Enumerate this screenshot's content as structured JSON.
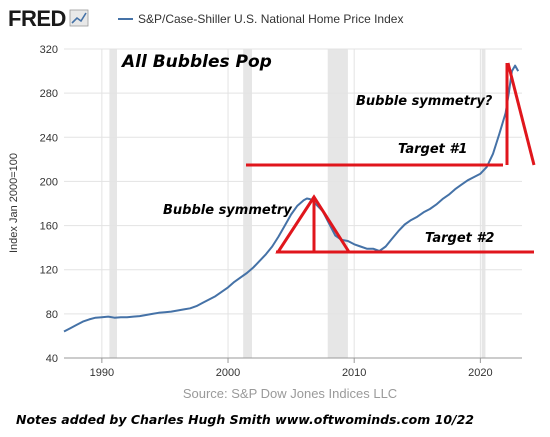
{
  "header": {
    "logo_text": "FRED",
    "legend_label": "S&P/Case-Shiller U.S. National Home Price Index"
  },
  "footer": {
    "source": "Source: S&P Dow Jones Indices LLC",
    "notes": "Notes added by Charles Hugh Smith  www.oftwominds.com   10/22"
  },
  "colors": {
    "series": "#4572a7",
    "annotation": "#e0161c",
    "recession": "#e6e6e6",
    "grid": "#e3e3e3"
  },
  "icons": {
    "logo_chart": "small-line-chart-icon"
  },
  "annotations": {
    "all_bubbles_pop": "All Bubbles Pop",
    "bubble_symmetry": "Bubble symmetry",
    "bubble_symmetry_q": "Bubble symmetry?",
    "target1": "Target #1",
    "target2": "Target #2"
  },
  "chart_data": {
    "type": "line",
    "title": "",
    "xlabel": "",
    "ylabel": "Index Jan 2000=100",
    "xlim": [
      1987.0,
      2023.3
    ],
    "ylim": [
      40,
      320
    ],
    "x_ticks": [
      1990,
      2000,
      2010,
      2020
    ],
    "y_ticks": [
      40,
      80,
      120,
      160,
      200,
      240,
      280,
      320
    ],
    "grid": true,
    "recessions": [
      [
        1990.6,
        1991.2
      ],
      [
        2001.2,
        2001.9
      ],
      [
        2007.9,
        2009.5
      ],
      [
        2020.1,
        2020.4
      ]
    ],
    "series": [
      {
        "name": "S&P/Case-Shiller U.S. National Home Price Index",
        "x": [
          1987.0,
          1987.5,
          1988.0,
          1988.5,
          1989.0,
          1989.5,
          1990.0,
          1990.5,
          1991.0,
          1991.5,
          1992.0,
          1992.5,
          1993.0,
          1993.5,
          1994.0,
          1994.5,
          1995.0,
          1995.5,
          1996.0,
          1996.5,
          1997.0,
          1997.5,
          1998.0,
          1998.5,
          1999.0,
          1999.5,
          2000.0,
          2000.5,
          2001.0,
          2001.5,
          2002.0,
          2002.5,
          2003.0,
          2003.5,
          2004.0,
          2004.5,
          2005.0,
          2005.5,
          2006.0,
          2006.25,
          2006.5,
          2006.75,
          2007.0,
          2007.5,
          2008.0,
          2008.5,
          2009.0,
          2009.5,
          2010.0,
          2010.5,
          2011.0,
          2011.5,
          2012.0,
          2012.5,
          2013.0,
          2013.5,
          2014.0,
          2014.5,
          2015.0,
          2015.5,
          2016.0,
          2016.5,
          2017.0,
          2017.5,
          2018.0,
          2018.5,
          2019.0,
          2019.5,
          2020.0,
          2020.5,
          2021.0,
          2021.5,
          2022.0,
          2022.25,
          2022.5,
          2022.75,
          2023.0
        ],
        "values": [
          64,
          67,
          70,
          73,
          75,
          76.5,
          77,
          77.5,
          76.5,
          77,
          77,
          77.5,
          78,
          79,
          80,
          81,
          81.5,
          82,
          83,
          84,
          85,
          87,
          90,
          93,
          96,
          100,
          104,
          109,
          113,
          117,
          122,
          128,
          134,
          141,
          150,
          160,
          170,
          178,
          183,
          184.5,
          184,
          182,
          179,
          173,
          162,
          151,
          147,
          146,
          143,
          141,
          139,
          139,
          137,
          141,
          148,
          155,
          161,
          165,
          168,
          172,
          175,
          179,
          184,
          188,
          193,
          197,
          201,
          204,
          207,
          213,
          225,
          243,
          262,
          280,
          300,
          305,
          300
        ]
      }
    ]
  }
}
